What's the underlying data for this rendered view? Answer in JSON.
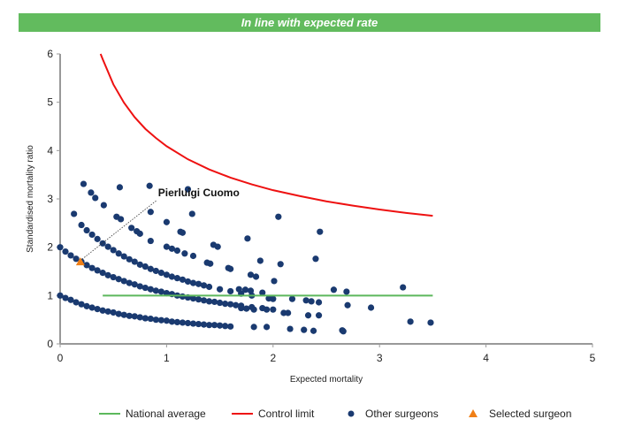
{
  "header": {
    "title": "In line with expected rate",
    "color": "#62bb5e"
  },
  "chart_data": {
    "type": "scatter",
    "xlabel": "Expected mortality",
    "ylabel": "Standardised mortality ratio",
    "xlim": [
      0,
      5
    ],
    "ylim": [
      0,
      6
    ],
    "xticks": [
      "0",
      "1",
      "2",
      "3",
      "4",
      "5"
    ],
    "yticks": [
      "0",
      "1",
      "2",
      "3",
      "4",
      "5",
      "6"
    ],
    "grid": false,
    "legend_position": "bottom",
    "national_average": {
      "name": "National average",
      "color": "#5cb85c",
      "x": [
        0.4,
        3.5
      ],
      "y": [
        1,
        1
      ]
    },
    "control_limit": {
      "name": "Control limit",
      "color": "#ee1111",
      "x": [
        0.38,
        0.4,
        0.5,
        0.6,
        0.7,
        0.8,
        0.9,
        1.0,
        1.2,
        1.4,
        1.6,
        1.8,
        2.0,
        2.25,
        2.5,
        2.75,
        3.0,
        3.25,
        3.5
      ],
      "y": [
        6.0,
        5.89,
        5.37,
        4.99,
        4.69,
        4.45,
        4.26,
        4.09,
        3.82,
        3.61,
        3.44,
        3.3,
        3.18,
        3.06,
        2.95,
        2.86,
        2.78,
        2.71,
        2.65
      ]
    },
    "other_surgeons": {
      "name": "Other surgeons",
      "color": "#1a3a70",
      "points": [
        [
          0,
          1.0
        ],
        [
          0.05,
          0.95
        ],
        [
          0.1,
          0.91
        ],
        [
          0.15,
          0.86
        ],
        [
          0.2,
          0.82
        ],
        [
          0.25,
          0.78
        ],
        [
          0.3,
          0.75
        ],
        [
          0.35,
          0.72
        ],
        [
          0.4,
          0.69
        ],
        [
          0.45,
          0.67
        ],
        [
          0.5,
          0.65
        ],
        [
          0.55,
          0.62
        ],
        [
          0.6,
          0.6
        ],
        [
          0.65,
          0.58
        ],
        [
          0.7,
          0.57
        ],
        [
          0.75,
          0.55
        ],
        [
          0.8,
          0.53
        ],
        [
          0.85,
          0.52
        ],
        [
          0.9,
          0.5
        ],
        [
          0.95,
          0.49
        ],
        [
          1.0,
          0.48
        ],
        [
          1.05,
          0.46
        ],
        [
          1.1,
          0.45
        ],
        [
          1.15,
          0.44
        ],
        [
          1.2,
          0.43
        ],
        [
          1.25,
          0.42
        ],
        [
          1.3,
          0.41
        ],
        [
          1.35,
          0.4
        ],
        [
          1.4,
          0.39
        ],
        [
          1.45,
          0.39
        ],
        [
          1.5,
          0.38
        ],
        [
          1.55,
          0.37
        ],
        [
          1.6,
          0.36
        ],
        [
          0,
          2.0
        ],
        [
          0.05,
          1.91
        ],
        [
          0.1,
          1.83
        ],
        [
          0.15,
          1.76
        ],
        [
          0.2,
          1.7
        ],
        [
          0.25,
          1.63
        ],
        [
          0.3,
          1.57
        ],
        [
          0.35,
          1.52
        ],
        [
          0.4,
          1.47
        ],
        [
          0.45,
          1.42
        ],
        [
          0.5,
          1.38
        ],
        [
          0.55,
          1.34
        ],
        [
          0.6,
          1.3
        ],
        [
          0.65,
          1.26
        ],
        [
          0.7,
          1.23
        ],
        [
          0.75,
          1.19
        ],
        [
          0.8,
          1.16
        ],
        [
          0.85,
          1.13
        ],
        [
          0.9,
          1.1
        ],
        [
          0.95,
          1.08
        ],
        [
          1.0,
          1.05
        ],
        [
          1.05,
          1.03
        ],
        [
          1.1,
          1.0
        ],
        [
          1.15,
          0.98
        ],
        [
          1.2,
          0.96
        ],
        [
          1.25,
          0.94
        ],
        [
          1.3,
          0.92
        ],
        [
          1.35,
          0.9
        ],
        [
          1.4,
          0.88
        ],
        [
          1.45,
          0.87
        ],
        [
          1.5,
          0.85
        ],
        [
          1.55,
          0.83
        ],
        [
          1.6,
          0.82
        ],
        [
          1.65,
          0.8
        ],
        [
          1.7,
          0.79
        ],
        [
          1.8,
          0.76
        ],
        [
          1.9,
          0.74
        ],
        [
          2.0,
          0.71
        ],
        [
          0.2,
          2.46
        ],
        [
          0.25,
          2.35
        ],
        [
          0.3,
          2.26
        ],
        [
          0.35,
          2.17
        ],
        [
          0.4,
          2.08
        ],
        [
          0.45,
          2.01
        ],
        [
          0.5,
          1.94
        ],
        [
          0.55,
          1.87
        ],
        [
          0.6,
          1.81
        ],
        [
          0.65,
          1.75
        ],
        [
          0.7,
          1.7
        ],
        [
          0.75,
          1.64
        ],
        [
          0.8,
          1.6
        ],
        [
          0.85,
          1.55
        ],
        [
          0.9,
          1.51
        ],
        [
          0.95,
          1.47
        ],
        [
          1.0,
          1.43
        ],
        [
          1.05,
          1.39
        ],
        [
          1.1,
          1.36
        ],
        [
          1.15,
          1.33
        ],
        [
          1.2,
          1.29
        ],
        [
          1.25,
          1.26
        ],
        [
          1.3,
          1.24
        ],
        [
          1.35,
          1.21
        ],
        [
          1.4,
          1.18
        ],
        [
          1.5,
          1.13
        ],
        [
          1.6,
          1.09
        ],
        [
          1.7,
          1.04
        ],
        [
          1.8,
          1.0
        ],
        [
          0.53,
          2.63
        ],
        [
          0.57,
          2.58
        ],
        [
          0.67,
          2.4
        ],
        [
          0.72,
          2.33
        ],
        [
          0.75,
          2.28
        ],
        [
          0.85,
          2.13
        ],
        [
          1.0,
          2.01
        ],
        [
          1.05,
          1.97
        ],
        [
          1.1,
          1.93
        ],
        [
          1.17,
          1.87
        ],
        [
          1.25,
          1.82
        ],
        [
          1.38,
          1.68
        ],
        [
          0.22,
          3.31
        ],
        [
          0.29,
          3.13
        ],
        [
          0.33,
          3.02
        ],
        [
          0.41,
          2.87
        ],
        [
          0.56,
          3.24
        ],
        [
          0.84,
          3.27
        ],
        [
          1.2,
          3.2
        ],
        [
          0.13,
          2.69
        ],
        [
          0.85,
          2.73
        ],
        [
          1.0,
          2.52
        ],
        [
          1.24,
          2.69
        ],
        [
          1.13,
          2.32
        ],
        [
          1.15,
          2.3
        ],
        [
          1.44,
          2.05
        ],
        [
          1.48,
          2.01
        ],
        [
          1.76,
          2.18
        ],
        [
          2.05,
          2.63
        ],
        [
          2.44,
          2.32
        ],
        [
          1.41,
          1.66
        ],
        [
          1.58,
          1.57
        ],
        [
          1.6,
          1.55
        ],
        [
          1.79,
          1.43
        ],
        [
          1.88,
          1.72
        ],
        [
          2.07,
          1.65
        ],
        [
          1.84,
          1.39
        ],
        [
          1.9,
          1.06
        ],
        [
          2.01,
          1.3
        ],
        [
          2.4,
          1.76
        ],
        [
          2.57,
          1.12
        ],
        [
          2.69,
          1.08
        ],
        [
          2.7,
          0.8
        ],
        [
          2.92,
          0.75
        ],
        [
          3.22,
          1.17
        ],
        [
          3.29,
          0.46
        ],
        [
          3.48,
          0.44
        ],
        [
          2.1,
          0.64
        ],
        [
          2.14,
          0.64
        ],
        [
          2.18,
          0.93
        ],
        [
          2.31,
          0.9
        ],
        [
          2.36,
          0.88
        ],
        [
          2.43,
          0.86
        ],
        [
          2.33,
          0.59
        ],
        [
          2.43,
          0.59
        ],
        [
          2.16,
          0.31
        ],
        [
          2.29,
          0.29
        ],
        [
          2.38,
          0.27
        ],
        [
          2.66,
          0.26
        ],
        [
          2.65,
          0.28
        ],
        [
          1.94,
          0.35
        ],
        [
          1.82,
          0.35
        ],
        [
          1.94,
          0.71
        ],
        [
          1.82,
          0.71
        ],
        [
          1.68,
          1.13
        ],
        [
          1.74,
          1.12
        ],
        [
          1.79,
          1.1
        ],
        [
          1.96,
          0.94
        ],
        [
          2.0,
          0.93
        ],
        [
          1.7,
          0.74
        ],
        [
          1.75,
          0.73
        ]
      ]
    },
    "selected_surgeon": {
      "name": "Selected surgeon",
      "color": "#f07f16",
      "label": "Pierluigi Cuomo",
      "x": 0.19,
      "y": 1.68
    }
  }
}
